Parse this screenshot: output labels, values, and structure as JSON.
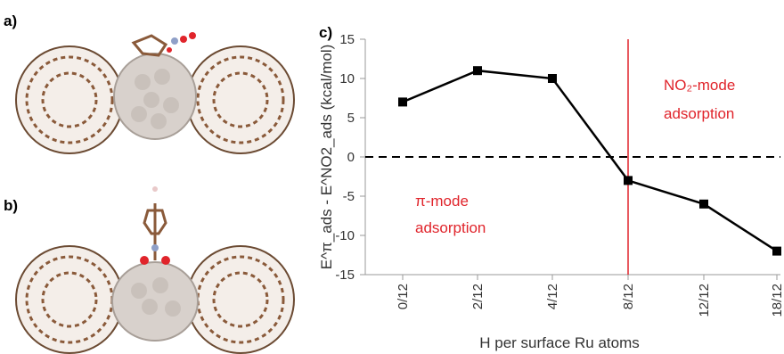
{
  "panels": {
    "a_label": "a)",
    "b_label": "b)",
    "c_label": "c)"
  },
  "chart_data": {
    "type": "line",
    "categories": [
      "0/12",
      "2/12",
      "4/12",
      "8/12",
      "12/12",
      "18/12"
    ],
    "values": [
      7,
      11,
      10,
      -3,
      -6,
      -12
    ],
    "xlabel": "H per surface Ru atoms",
    "ylabel": "E^π_ads - E^NO2_ads (kcal/mol)",
    "ylim": [
      -15,
      15
    ],
    "yticks": [
      "15",
      "10",
      "5",
      "0",
      "-5",
      "-10",
      "-15"
    ],
    "reference_line": {
      "y": 0,
      "style": "dashed"
    },
    "vertical_marker": {
      "x": "8/12",
      "color": "#e0242b"
    },
    "annotations": {
      "right_line1": "NO₂-mode",
      "right_line2": "adsorption",
      "left_line1": "π-mode",
      "left_line2": "adsorption"
    },
    "colors": {
      "series": "#000000",
      "annotation": "#e0242b"
    }
  }
}
